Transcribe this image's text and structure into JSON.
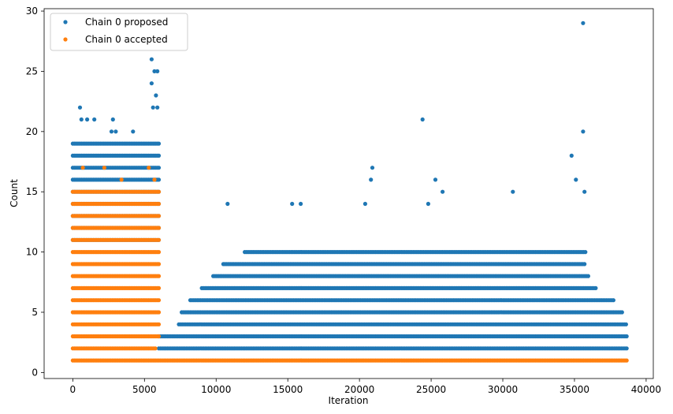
{
  "chart_data": {
    "type": "scatter",
    "title": "",
    "xlabel": "Iteration",
    "ylabel": "Count",
    "xlim": [
      -2000,
      40500
    ],
    "ylim": [
      -0.5,
      30.2
    ],
    "xticks": [
      0,
      5000,
      10000,
      15000,
      20000,
      25000,
      30000,
      35000,
      40000
    ],
    "xtick_labels": [
      "0",
      "5000",
      "10000",
      "15000",
      "20000",
      "25000",
      "30000",
      "35000",
      "40000"
    ],
    "yticks": [
      0,
      5,
      10,
      15,
      20,
      25,
      30
    ],
    "ytick_labels": [
      "0",
      "5",
      "10",
      "15",
      "20",
      "25",
      "30"
    ],
    "grid": false,
    "legend_position": "top-left",
    "series": [
      {
        "name": "Chain 0 proposed",
        "color": "#1f77b4",
        "points": [
          [
            500,
            22
          ],
          [
            600,
            21
          ],
          [
            1000,
            21
          ],
          [
            1500,
            21
          ],
          [
            2800,
            21
          ],
          [
            4200,
            20
          ],
          [
            2700,
            20
          ],
          [
            3000,
            20
          ],
          [
            5500,
            26
          ],
          [
            5500,
            24
          ],
          [
            5700,
            25
          ],
          [
            5900,
            25
          ],
          [
            5800,
            23
          ],
          [
            5600,
            22
          ],
          [
            5900,
            22
          ],
          [
            24400,
            21
          ],
          [
            35600,
            29
          ],
          [
            35600,
            20
          ],
          [
            34800,
            18
          ],
          [
            20900,
            17
          ],
          [
            20800,
            16
          ],
          [
            25300,
            16
          ],
          [
            35100,
            16
          ],
          [
            15300,
            14
          ],
          [
            15900,
            14
          ],
          [
            20400,
            14
          ],
          [
            24800,
            14
          ],
          [
            30700,
            15
          ],
          [
            25800,
            15
          ],
          [
            35700,
            15
          ],
          [
            10800,
            14
          ]
        ],
        "bands": [
          {
            "y": 2,
            "x": [
              6000,
              38700
            ]
          },
          {
            "y": 3,
            "x": [
              6000,
              38700
            ]
          },
          {
            "y": 4,
            "x": [
              7400,
              38700
            ]
          },
          {
            "y": 5,
            "x": [
              7600,
              38400
            ]
          },
          {
            "y": 6,
            "x": [
              8200,
              37800
            ]
          },
          {
            "y": 7,
            "x": [
              9000,
              36500
            ]
          },
          {
            "y": 8,
            "x": [
              9800,
              36000
            ]
          },
          {
            "y": 9,
            "x": [
              10500,
              35800
            ]
          },
          {
            "y": 10,
            "x": [
              12000,
              35800
            ]
          },
          {
            "y": 11,
            "x": [
              0,
              6000
            ]
          },
          {
            "y": 12,
            "x": [
              0,
              6000
            ]
          },
          {
            "y": 13,
            "x": [
              0,
              6000
            ]
          },
          {
            "y": 14,
            "x": [
              0,
              6000
            ]
          },
          {
            "y": 15,
            "x": [
              0,
              6000
            ]
          },
          {
            "y": 16,
            "x": [
              0,
              6000
            ]
          },
          {
            "y": 17,
            "x": [
              0,
              6000
            ]
          },
          {
            "y": 18,
            "x": [
              0,
              6000
            ]
          },
          {
            "y": 19,
            "x": [
              0,
              6000
            ]
          }
        ]
      },
      {
        "name": "Chain 0 accepted",
        "color": "#ff7f0e",
        "points": [
          [
            700,
            17
          ],
          [
            2200,
            17
          ],
          [
            3400,
            16
          ],
          [
            5700,
            16
          ],
          [
            5300,
            17
          ]
        ],
        "bands": [
          {
            "y": 1,
            "x": [
              0,
              38700
            ]
          },
          {
            "y": 2,
            "x": [
              0,
              5800
            ]
          },
          {
            "y": 3,
            "x": [
              0,
              6000
            ]
          },
          {
            "y": 4,
            "x": [
              0,
              6000
            ]
          },
          {
            "y": 5,
            "x": [
              0,
              6000
            ]
          },
          {
            "y": 6,
            "x": [
              0,
              6000
            ]
          },
          {
            "y": 7,
            "x": [
              0,
              6000
            ]
          },
          {
            "y": 8,
            "x": [
              0,
              6000
            ]
          },
          {
            "y": 9,
            "x": [
              0,
              6000
            ]
          },
          {
            "y": 10,
            "x": [
              0,
              6000
            ]
          },
          {
            "y": 11,
            "x": [
              0,
              6000
            ]
          },
          {
            "y": 12,
            "x": [
              0,
              6000
            ]
          },
          {
            "y": 13,
            "x": [
              0,
              6000
            ]
          },
          {
            "y": 14,
            "x": [
              0,
              6000
            ]
          },
          {
            "y": 15,
            "x": [
              0,
              6000
            ]
          }
        ]
      }
    ]
  }
}
